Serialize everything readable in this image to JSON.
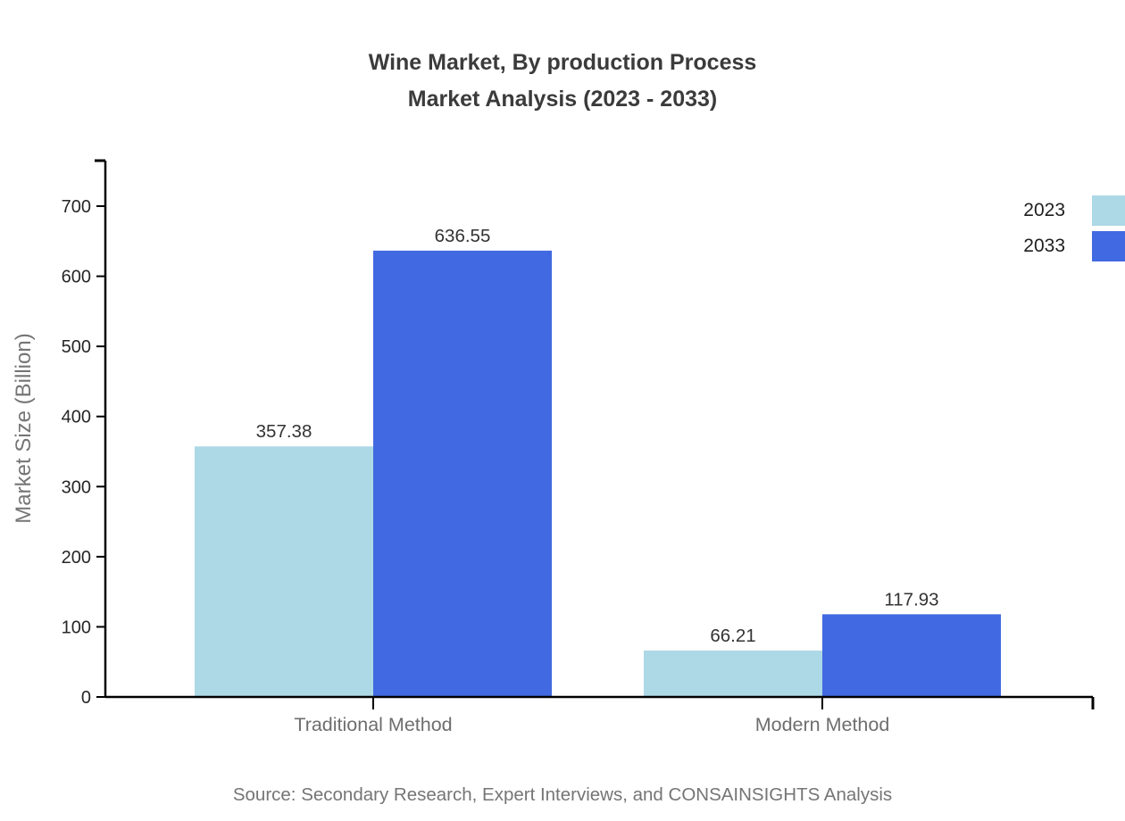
{
  "header": {
    "title_line1": "Wine Market, By production Process",
    "title_line2": "Market Analysis (2023 - 2033)"
  },
  "legend": {
    "items": [
      {
        "label": "2023",
        "color": "#ADD8E6"
      },
      {
        "label": "2033",
        "color": "#4169E1"
      }
    ]
  },
  "footer": {
    "source": "Source: Secondary Research, Expert Interviews, and CONSAINSIGHTS Analysis"
  },
  "colors": {
    "axis": "#000000",
    "tick_label": "#262626",
    "category_label": "#6e6e6e",
    "axis_title": "#757575",
    "value_label": "#333333",
    "series_2023": "#ADD8E6",
    "series_2033": "#4169E1"
  },
  "chart_data": {
    "type": "bar",
    "title": "Wine Market, By production Process Market Analysis (2023 - 2033)",
    "categories": [
      "Traditional Method",
      "Modern Method"
    ],
    "series": [
      {
        "name": "2023",
        "color": "#ADD8E6",
        "values": [
          357.38,
          66.21
        ]
      },
      {
        "name": "2033",
        "color": "#4169E1",
        "values": [
          636.55,
          117.93
        ]
      }
    ],
    "xlabel": "",
    "ylabel": "Market Size (Billion)",
    "ylim": [
      0,
      760
    ],
    "yticks": [
      0,
      100,
      200,
      300,
      400,
      500,
      600,
      700
    ],
    "grid": false,
    "legend_position": "top-right-edge",
    "value_labels": true,
    "source": "Source: Secondary Research, Expert Interviews, and CONSAINSIGHTS Analysis"
  }
}
